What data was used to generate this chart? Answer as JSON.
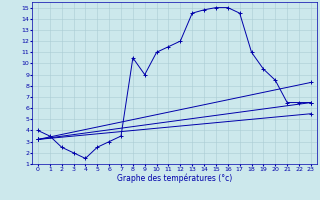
{
  "xlabel": "Graphe des températures (°c)",
  "bg_color": "#cce8ec",
  "grid_color": "#aacdd4",
  "line_color": "#0000aa",
  "xlim": [
    -0.5,
    23.5
  ],
  "ylim": [
    1,
    15.5
  ],
  "xticks": [
    0,
    1,
    2,
    3,
    4,
    5,
    6,
    7,
    8,
    9,
    10,
    11,
    12,
    13,
    14,
    15,
    16,
    17,
    18,
    19,
    20,
    21,
    22,
    23
  ],
  "yticks": [
    1,
    2,
    3,
    4,
    5,
    6,
    7,
    8,
    9,
    10,
    11,
    12,
    13,
    14,
    15
  ],
  "line1_x": [
    0,
    1,
    2,
    3,
    4,
    5,
    6,
    7,
    8,
    9,
    10,
    11,
    12,
    13,
    14,
    15,
    16,
    17,
    18,
    19,
    20,
    21,
    22,
    23
  ],
  "line1_y": [
    4.0,
    3.5,
    2.5,
    2.0,
    1.5,
    2.5,
    3.0,
    3.5,
    10.5,
    9.0,
    11.0,
    11.5,
    12.0,
    14.5,
    14.8,
    15.0,
    15.0,
    14.5,
    11.0,
    9.5,
    8.5,
    6.5,
    6.5,
    6.5
  ],
  "line2_x": [
    0,
    23
  ],
  "line2_y": [
    3.2,
    8.3
  ],
  "line3_x": [
    0,
    23
  ],
  "line3_y": [
    3.2,
    6.5
  ],
  "line4_x": [
    0,
    23
  ],
  "line4_y": [
    3.2,
    5.5
  ]
}
